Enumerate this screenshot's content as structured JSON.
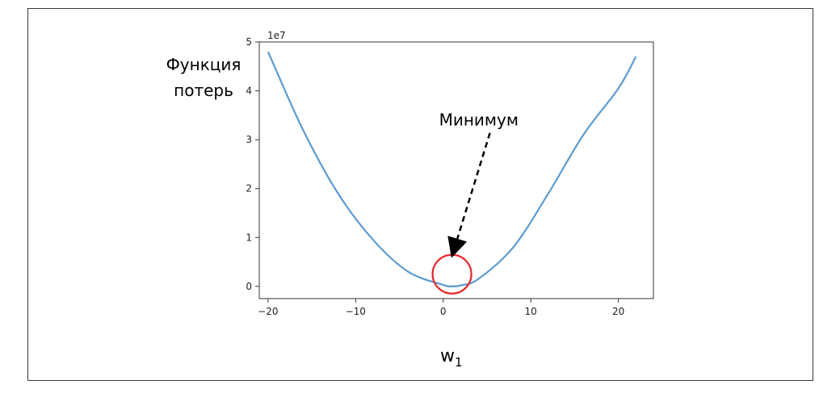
{
  "chart_data": {
    "type": "line",
    "title": "",
    "ylabel_lines": [
      "Функция",
      "потерь"
    ],
    "xlabel_main": "w",
    "xlabel_sub": "1",
    "y_scale_label": "1e7",
    "xlim": [
      -21,
      24
    ],
    "ylim": [
      -0.25,
      5.0
    ],
    "x_ticks": [
      -20,
      -10,
      0,
      10,
      20
    ],
    "x_tick_labels": [
      "−20",
      "−10",
      "0",
      "10",
      "20"
    ],
    "y_ticks": [
      0,
      1,
      2,
      3,
      4,
      5
    ],
    "y_tick_labels": [
      "0",
      "1",
      "2",
      "3",
      "4",
      "5"
    ],
    "series": [
      {
        "color": "#5b9bd0",
        "x": [
          -20,
          -16,
          -12,
          -8,
          -4,
          0,
          1,
          2,
          4,
          8,
          12,
          16,
          20,
          22
        ],
        "y": [
          4.8,
          3.2,
          1.9,
          0.95,
          0.3,
          0.03,
          0.0,
          0.02,
          0.15,
          0.8,
          1.9,
          3.1,
          4.05,
          4.7
        ]
      }
    ],
    "annotation": {
      "text": "Минимум",
      "target_x": 1,
      "target_y": 0.25,
      "circle_color": "#e8262a"
    }
  }
}
